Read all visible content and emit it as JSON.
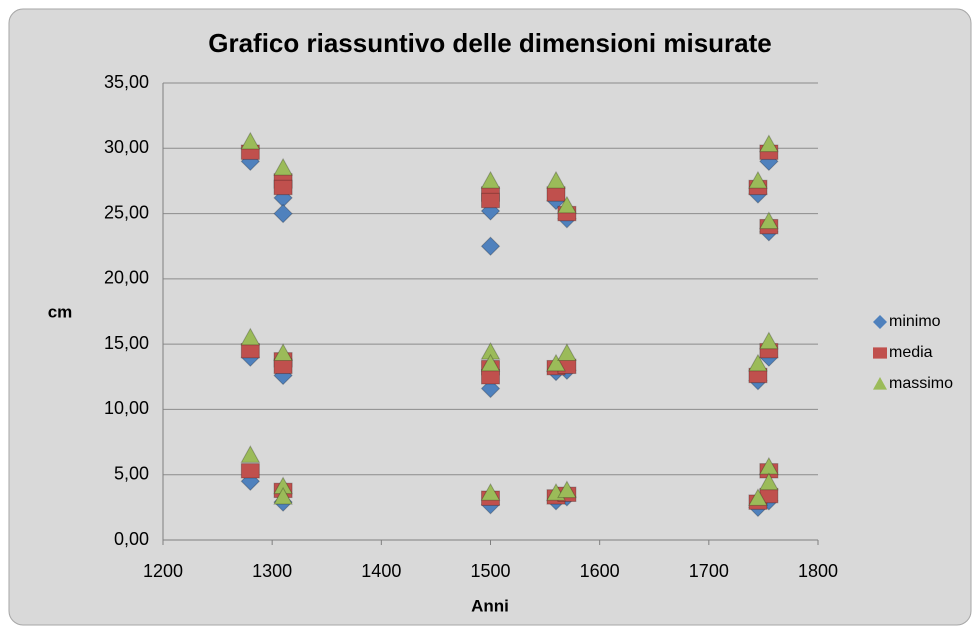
{
  "chart_data": {
    "type": "scatter",
    "title": "Grafico riassuntivo delle dimensioni misurate",
    "x_label": "Anni",
    "y_label": "cm",
    "xlim": [
      1200,
      1800
    ],
    "xticks": [
      1200,
      1300,
      1400,
      1500,
      1600,
      1700,
      1800
    ],
    "ylim": [
      0,
      35
    ],
    "yticks": [
      {
        "value": 0,
        "label": "0,00"
      },
      {
        "value": 5,
        "label": "5,00"
      },
      {
        "value": 10,
        "label": "10,00"
      },
      {
        "value": 15,
        "label": "15,00"
      },
      {
        "value": 20,
        "label": "20,00"
      },
      {
        "value": 25,
        "label": "25,00"
      },
      {
        "value": 30,
        "label": "30,00"
      },
      {
        "value": 35,
        "label": "35,00"
      }
    ],
    "grid": true,
    "legend": "right",
    "series": [
      {
        "name": "minimo",
        "color": "#4f81bd",
        "x": [
          1280,
          1280,
          1280,
          1310,
          1310,
          1310,
          1310,
          1500,
          1500,
          1500,
          1500,
          1560,
          1560,
          1560,
          1570,
          1570,
          1570,
          1745,
          1745,
          1745,
          1755,
          1755,
          1755,
          1755
        ],
        "values": [
          29.0,
          14.0,
          4.5,
          26.2,
          25.0,
          12.6,
          2.9,
          25.2,
          22.5,
          11.6,
          2.7,
          26.0,
          12.9,
          3.0,
          24.6,
          13.0,
          3.3,
          26.5,
          12.2,
          2.5,
          29.0,
          23.6,
          14.0,
          3.0
        ]
      },
      {
        "name": "media",
        "color": "#c0504d",
        "x": [
          1280,
          1280,
          1280,
          1310,
          1310,
          1310,
          1310,
          1310,
          1500,
          1500,
          1500,
          1500,
          1500,
          1560,
          1560,
          1560,
          1570,
          1570,
          1570,
          1745,
          1745,
          1745,
          1755,
          1755,
          1755,
          1755,
          1755
        ],
        "values": [
          29.7,
          14.5,
          5.3,
          27.5,
          27.0,
          13.8,
          13.3,
          3.8,
          26.5,
          26.0,
          13.2,
          12.5,
          3.2,
          26.5,
          13.2,
          3.3,
          25.0,
          13.3,
          3.5,
          27.0,
          12.6,
          2.9,
          29.7,
          24.0,
          14.5,
          5.3,
          3.4
        ]
      },
      {
        "name": "massimo",
        "color": "#9bbb59",
        "x": [
          1280,
          1280,
          1280,
          1310,
          1310,
          1310,
          1310,
          1500,
          1500,
          1500,
          1500,
          1560,
          1560,
          1560,
          1570,
          1570,
          1570,
          1745,
          1745,
          1745,
          1755,
          1755,
          1755,
          1755,
          1755
        ],
        "values": [
          30.5,
          15.5,
          6.5,
          28.5,
          14.3,
          4.1,
          3.3,
          27.5,
          14.4,
          13.5,
          3.6,
          27.5,
          13.5,
          3.6,
          25.6,
          14.3,
          3.8,
          27.5,
          13.5,
          3.2,
          30.3,
          24.4,
          15.2,
          5.6,
          4.4
        ]
      }
    ]
  }
}
